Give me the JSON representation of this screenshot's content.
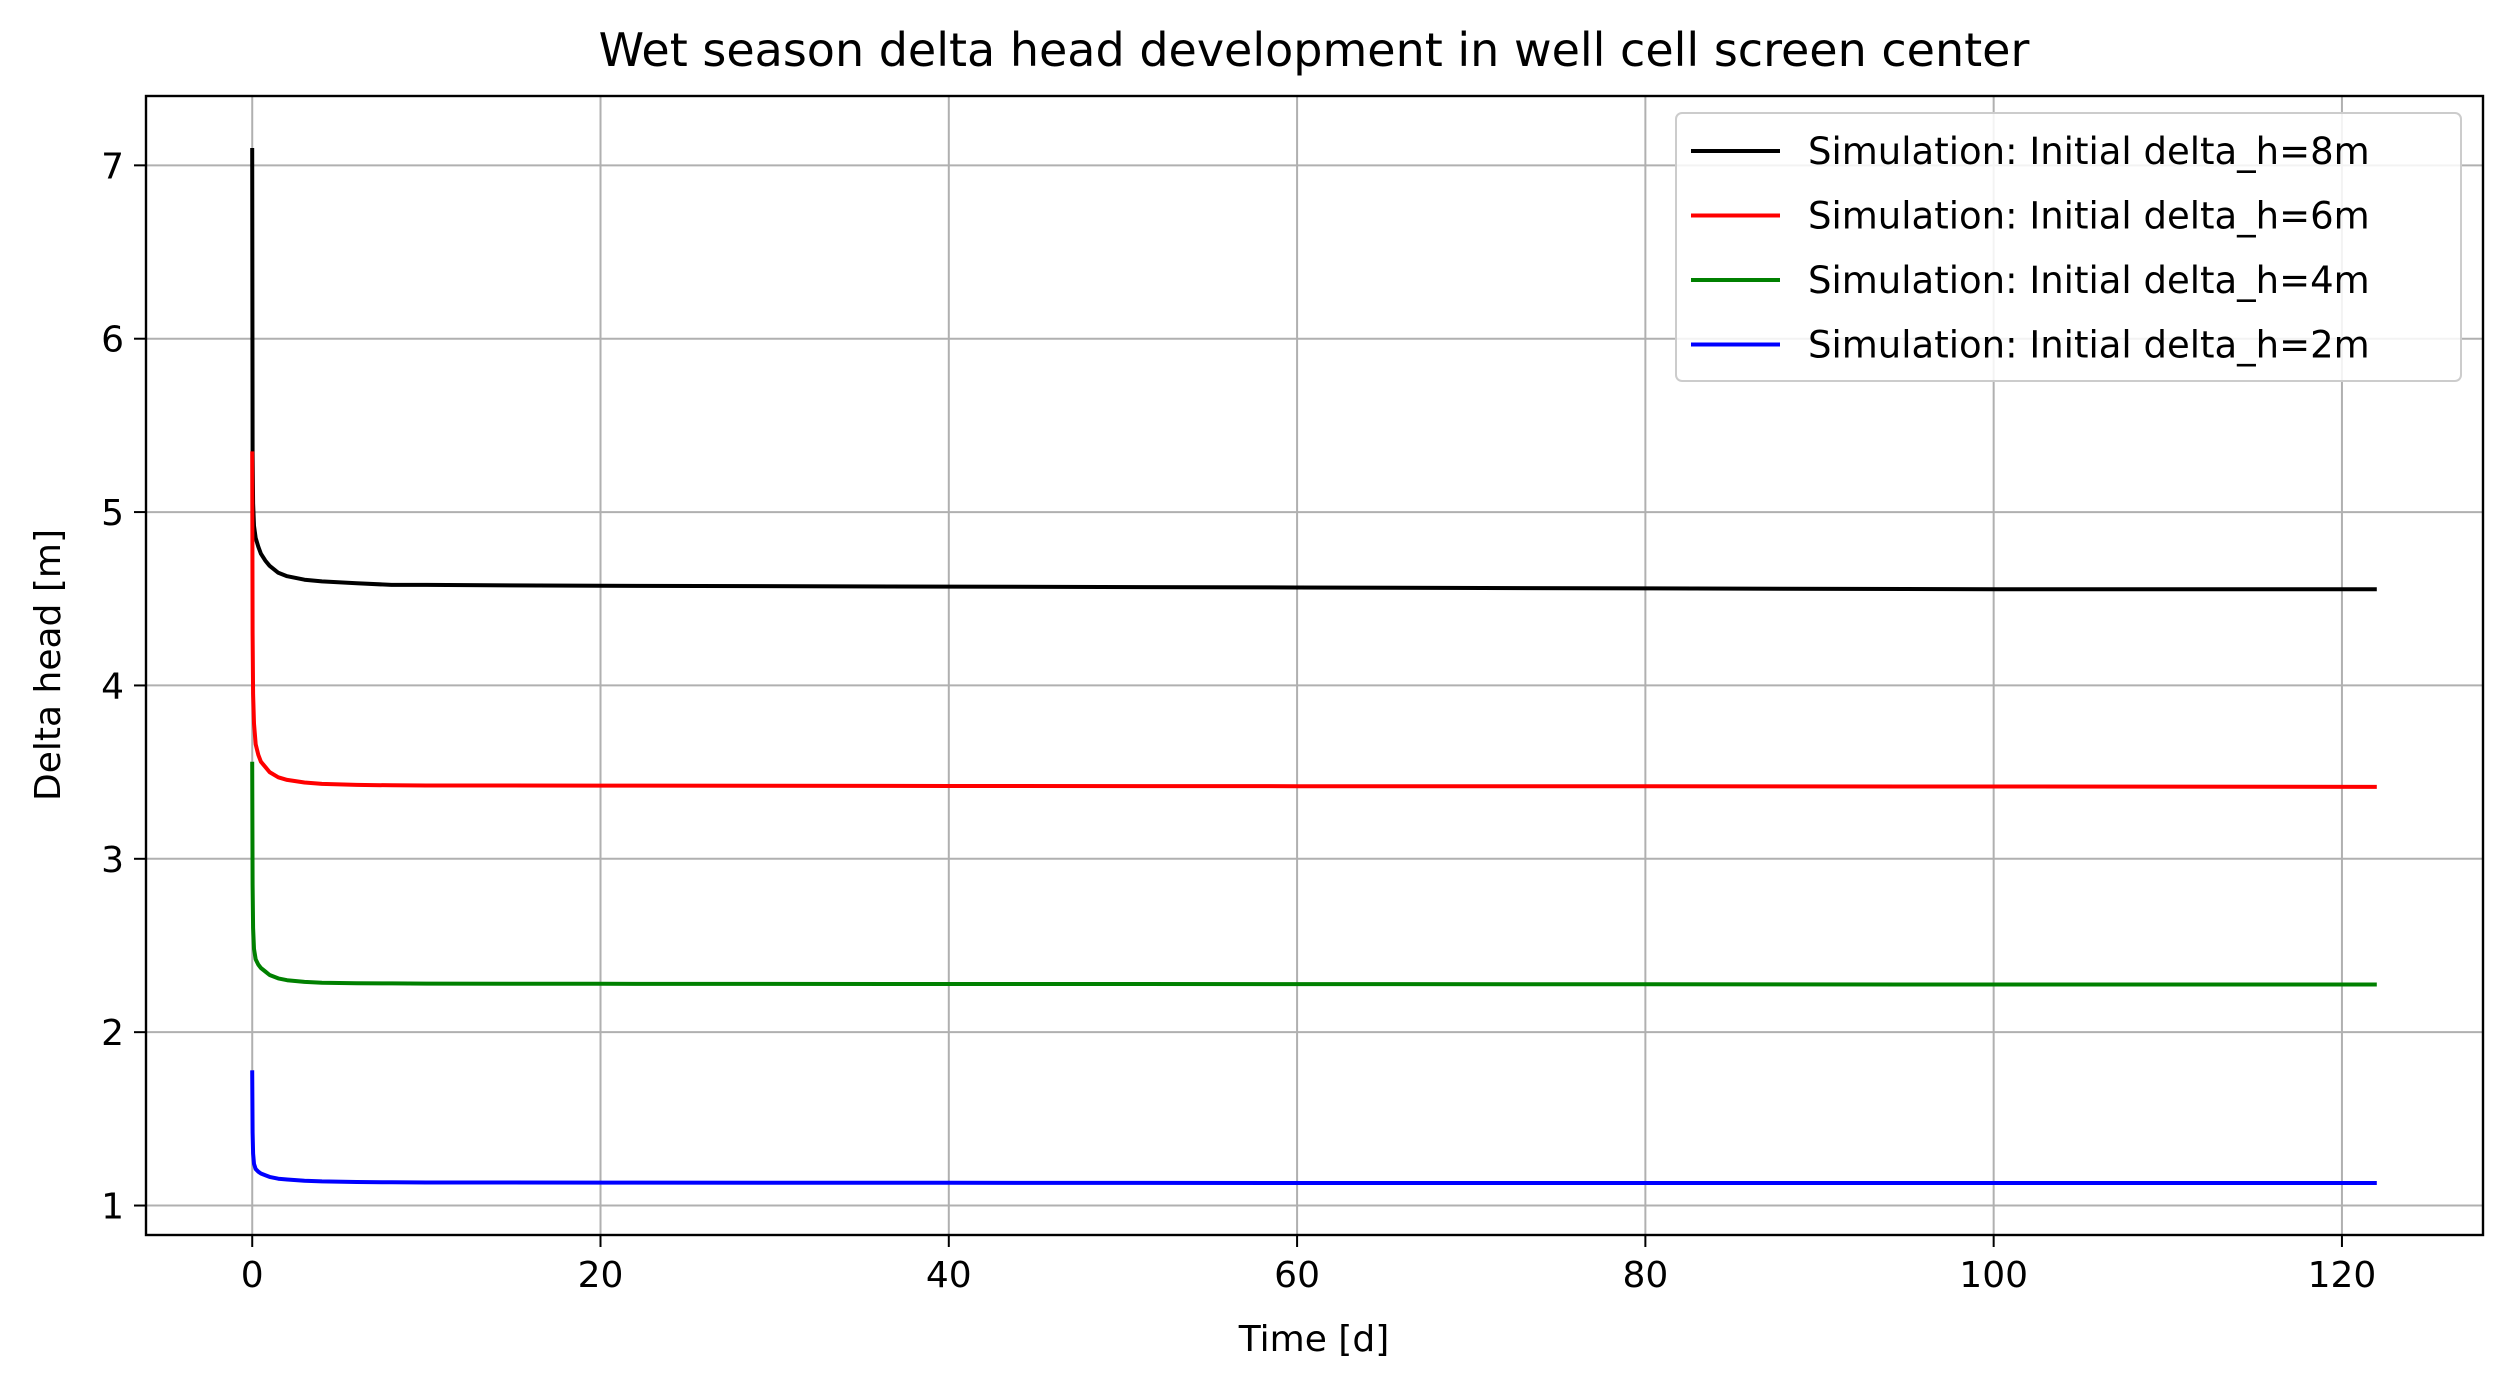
{
  "chart_data": {
    "type": "line",
    "title": "Wet season delta head development in well cell screen center",
    "xlabel": "Time [d]",
    "ylabel": "Delta head [m]",
    "xlim": [
      -6.1,
      128.1
    ],
    "ylim": [
      0.83,
      7.4
    ],
    "xticks": [
      0,
      20,
      40,
      60,
      80,
      100,
      120
    ],
    "yticks": [
      1,
      2,
      3,
      4,
      5,
      6,
      7
    ],
    "grid": true,
    "legend_position": "top-right",
    "series": [
      {
        "name": "Simulation: Initial delta_h=8m",
        "color": "#000000",
        "x": [
          0,
          0.02,
          0.05,
          0.1,
          0.2,
          0.35,
          0.5,
          0.75,
          1,
          1.5,
          2,
          3,
          4,
          6,
          8,
          10,
          20,
          40,
          60,
          80,
          100,
          122
        ],
        "y": [
          7.1,
          5.35,
          5.05,
          4.92,
          4.85,
          4.8,
          4.76,
          4.72,
          4.69,
          4.65,
          4.63,
          4.61,
          4.6,
          4.59,
          4.58,
          4.58,
          4.575,
          4.57,
          4.565,
          4.56,
          4.555,
          4.555
        ]
      },
      {
        "name": "Simulation: Initial delta_h=6m",
        "color": "#ff0000",
        "x": [
          0,
          0.02,
          0.05,
          0.1,
          0.2,
          0.35,
          0.5,
          0.75,
          1,
          1.5,
          2,
          3,
          4,
          6,
          8,
          10,
          20,
          40,
          60,
          80,
          100,
          122
        ],
        "y": [
          5.35,
          4.3,
          3.95,
          3.78,
          3.66,
          3.6,
          3.56,
          3.53,
          3.5,
          3.47,
          3.455,
          3.44,
          3.432,
          3.426,
          3.424,
          3.423,
          3.422,
          3.42,
          3.419,
          3.418,
          3.417,
          3.415
        ]
      },
      {
        "name": "Simulation: Initial delta_h=4m",
        "color": "#008000",
        "x": [
          0,
          0.02,
          0.05,
          0.1,
          0.2,
          0.35,
          0.5,
          0.75,
          1,
          1.5,
          2,
          3,
          4,
          6,
          8,
          10,
          20,
          40,
          60,
          80,
          100,
          122
        ],
        "y": [
          3.56,
          2.85,
          2.6,
          2.48,
          2.42,
          2.39,
          2.37,
          2.35,
          2.33,
          2.31,
          2.3,
          2.29,
          2.285,
          2.282,
          2.281,
          2.28,
          2.279,
          2.278,
          2.277,
          2.276,
          2.275,
          2.275
        ]
      },
      {
        "name": "Simulation: Initial delta_h=2m",
        "color": "#0000ff",
        "x": [
          0,
          0.02,
          0.05,
          0.1,
          0.2,
          0.35,
          0.5,
          0.75,
          1,
          1.5,
          2,
          3,
          4,
          6,
          8,
          10,
          20,
          40,
          60,
          80,
          100,
          122
        ],
        "y": [
          1.78,
          1.42,
          1.3,
          1.24,
          1.21,
          1.195,
          1.185,
          1.175,
          1.165,
          1.155,
          1.15,
          1.143,
          1.139,
          1.136,
          1.134,
          1.133,
          1.132,
          1.131,
          1.13,
          1.13,
          1.13,
          1.13
        ]
      }
    ]
  }
}
